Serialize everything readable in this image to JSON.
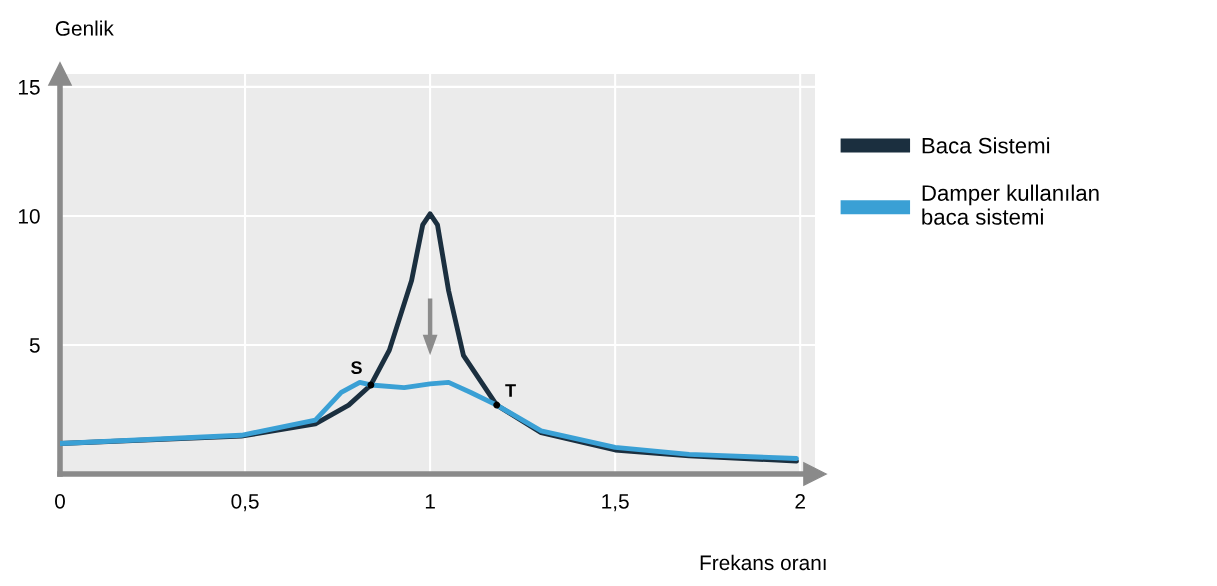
{
  "chart_data": {
    "type": "line",
    "xlabel": "Frekans oranı",
    "ylabel": "Genlik",
    "xlim": [
      0,
      2.04
    ],
    "xticks": [
      0,
      {
        "value": 0.5,
        "label": "0,5"
      },
      1,
      {
        "value": 1.5,
        "label": "1,5"
      },
      2
    ],
    "ylim": [
      0,
      15.5
    ],
    "yticks": [
      {
        "value": 0,
        "label": null
      },
      5,
      10,
      15
    ],
    "grid": true,
    "legend": "right",
    "marker": "none",
    "line_style": "solid",
    "series": [
      {
        "name": "Baca Sistemi",
        "color": "#1b2f3f",
        "x": [
          0,
          0.49,
          0.69,
          0.78,
          0.84,
          0.89,
          0.95,
          0.98,
          1.0,
          1.02,
          1.05,
          1.09,
          1.18,
          1.3,
          1.5,
          1.7,
          1.99
        ],
        "values": [
          1.18,
          1.47,
          1.94,
          2.67,
          3.45,
          4.8,
          7.5,
          9.65,
          10.08,
          9.65,
          7.1,
          4.6,
          2.67,
          1.6,
          0.93,
          0.7,
          0.5
        ]
      },
      {
        "name": "Damper kullanılan\nbaca sistemi",
        "color": "#3aa0d5",
        "x": [
          0,
          0.49,
          0.69,
          0.76,
          0.81,
          0.84,
          0.93,
          1.0,
          1.05,
          1.11,
          1.18,
          1.3,
          1.5,
          1.7,
          1.99
        ],
        "values": [
          1.18,
          1.5,
          2.09,
          3.16,
          3.55,
          3.45,
          3.35,
          3.49,
          3.55,
          3.16,
          2.67,
          1.67,
          1.03,
          0.76,
          0.6
        ]
      }
    ],
    "annotations": [
      {
        "text": "S",
        "x": 0.84,
        "y": 3.45
      },
      {
        "text": "T",
        "x": 1.18,
        "y": 2.67
      }
    ]
  }
}
